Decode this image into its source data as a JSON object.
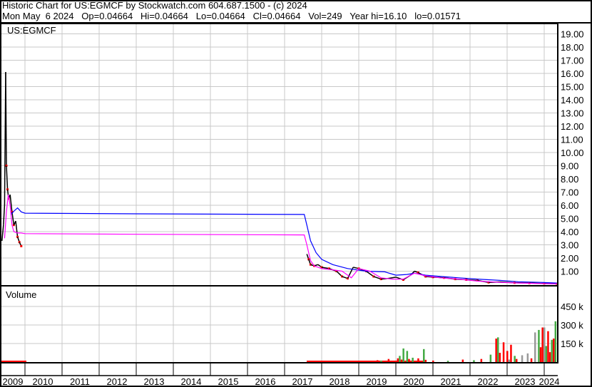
{
  "header": {
    "title": "Historic Chart for US:EGMCF by Stockwatch.com 604.687.1500 - (c) 2024",
    "quote_line": "Mon May  6 2024   Op=0.04664   Hi=0.04664   Lo=0.04664   Cl=0.04664   Vol=249   Year hi=16.10   lo=0.01571"
  },
  "chart_data": [
    {
      "type": "line",
      "title": "US:EGMCF",
      "y_ticks": [
        "1.00",
        "2.00",
        "3.00",
        "4.00",
        "5.00",
        "6.00",
        "7.00",
        "8.00",
        "9.00",
        "10.00",
        "11.00",
        "12.00",
        "13.00",
        "14.00",
        "15.00",
        "16.00",
        "17.00",
        "18.00",
        "19.00"
      ],
      "ylim": [
        0,
        19.8
      ],
      "x_ticks": [
        "2009",
        "2010",
        "2011",
        "2012",
        "2013",
        "2014",
        "2015",
        "2016",
        "2017",
        "2018",
        "2019",
        "2020",
        "2021",
        "2022",
        "2023",
        "2024"
      ],
      "grid": true,
      "colors": {
        "price": "#000000",
        "down_close": "#ff0000",
        "ma_long": "#0000ff",
        "ma_short": "#ff00ff"
      },
      "price": {
        "x": [
          2009.38,
          2009.42,
          2009.45,
          2009.48,
          2009.5,
          2009.53,
          2009.56,
          2009.6,
          2009.65,
          2009.7,
          2009.75,
          2009.8,
          2009.85,
          2009.9,
          2017.6,
          2017.65,
          2017.7,
          2017.8,
          2017.9,
          2018.0,
          2018.2,
          2018.4,
          2018.55,
          2018.7,
          2018.85,
          2019.0,
          2019.2,
          2019.4,
          2019.6,
          2019.8,
          2020.0,
          2020.2,
          2020.4,
          2020.5,
          2020.6,
          2020.8,
          2021.0,
          2021.3,
          2021.6,
          2021.9,
          2022.2,
          2022.5,
          2022.8,
          2023.2,
          2023.6,
          2024.0,
          2024.34
        ],
        "y": [
          3.3,
          4.5,
          6.0,
          16.1,
          9.0,
          7.2,
          6.5,
          6.8,
          5.5,
          4.5,
          4.8,
          3.6,
          3.2,
          2.9,
          2.3,
          1.9,
          1.5,
          1.4,
          1.5,
          1.3,
          1.2,
          1.0,
          0.6,
          0.45,
          1.3,
          1.2,
          1.0,
          0.6,
          0.4,
          0.45,
          0.55,
          0.35,
          0.7,
          1.0,
          0.9,
          0.6,
          0.55,
          0.5,
          0.4,
          0.35,
          0.3,
          0.15,
          0.18,
          0.12,
          0.1,
          0.07,
          0.047
        ]
      },
      "ma_long": {
        "x": [
          2009.62,
          2009.72,
          2009.8,
          2009.9,
          2010.0,
          2013.0,
          2017.53,
          2017.6,
          2017.7,
          2017.85,
          2018.0,
          2018.3,
          2018.7,
          2019.2,
          2019.7,
          2020.0,
          2020.3,
          2020.5,
          2020.8,
          2021.2,
          2021.7,
          2022.2,
          2022.8,
          2023.3,
          2023.9,
          2024.34
        ],
        "y": [
          5.3,
          5.6,
          5.8,
          5.5,
          5.4,
          5.35,
          5.3,
          4.5,
          3.3,
          2.4,
          1.9,
          1.5,
          1.2,
          1.0,
          0.95,
          0.7,
          0.75,
          0.85,
          0.7,
          0.6,
          0.5,
          0.4,
          0.3,
          0.2,
          0.15,
          0.1
        ]
      },
      "ma_short": {
        "x": [
          2009.45,
          2009.5,
          2009.55,
          2009.6,
          2009.65,
          2009.7,
          2009.8,
          2009.9,
          2010.0,
          2013.0,
          2017.53,
          2017.6,
          2017.7,
          2017.8,
          2018.0,
          2018.3,
          2018.55,
          2018.8,
          2019.0,
          2019.3,
          2019.6,
          2019.9,
          2020.2,
          2020.5,
          2020.8,
          2021.2,
          2021.7,
          2022.2,
          2022.8,
          2023.3,
          2023.9,
          2024.34
        ],
        "y": [
          3.5,
          5.5,
          6.8,
          6.0,
          4.5,
          4.0,
          3.9,
          3.9,
          3.85,
          3.8,
          3.75,
          3.0,
          1.8,
          1.4,
          1.2,
          1.1,
          1.0,
          0.5,
          1.2,
          1.0,
          0.5,
          0.4,
          0.4,
          0.85,
          0.65,
          0.5,
          0.4,
          0.25,
          0.15,
          0.1,
          0.06,
          0.04
        ]
      }
    },
    {
      "type": "bar",
      "title": "Volume",
      "y_ticks": [
        "150 k",
        "300 k",
        "450 k"
      ],
      "ylim": [
        0,
        560000
      ],
      "colors": {
        "up": "#44aa44",
        "down": "#ff0000",
        "unchanged": "#999999"
      },
      "x": [
        2019.5,
        2019.6,
        2019.8,
        2020.05,
        2020.1,
        2020.15,
        2020.2,
        2020.3,
        2020.35,
        2020.45,
        2020.6,
        2020.75,
        2020.8,
        2021.0,
        2021.4,
        2021.8,
        2022.1,
        2022.3,
        2022.55,
        2022.7,
        2022.75,
        2022.8,
        2022.9,
        2023.0,
        2023.05,
        2023.1,
        2023.2,
        2023.25,
        2023.4,
        2023.55,
        2023.65,
        2023.75,
        2023.85,
        2023.9,
        2023.95,
        2024.0,
        2024.05,
        2024.1,
        2024.15,
        2024.2,
        2024.25,
        2024.3
      ],
      "values": [
        15000,
        12000,
        25000,
        30000,
        50000,
        20000,
        110000,
        90000,
        25000,
        35000,
        30000,
        105000,
        18000,
        12000,
        10000,
        20000,
        15000,
        25000,
        60000,
        190000,
        200000,
        75000,
        160000,
        90000,
        20000,
        140000,
        50000,
        25000,
        55000,
        70000,
        30000,
        240000,
        260000,
        120000,
        280000,
        280000,
        130000,
        250000,
        80000,
        180000,
        190000,
        330000
      ],
      "bar_colors": [
        "down",
        "up",
        "down",
        "down",
        "up",
        "down",
        "up",
        "up",
        "down",
        "up",
        "down",
        "up",
        "down",
        "down",
        "up",
        "down",
        "up",
        "down",
        "up",
        "down",
        "up",
        "down",
        "down",
        "down",
        "unchanged",
        "down",
        "up",
        "down",
        "unchanged",
        "unchanged",
        "down",
        "unchanged",
        "up",
        "down",
        "down",
        "unchanged",
        "up",
        "down",
        "red",
        "up",
        "down",
        "up"
      ]
    }
  ]
}
